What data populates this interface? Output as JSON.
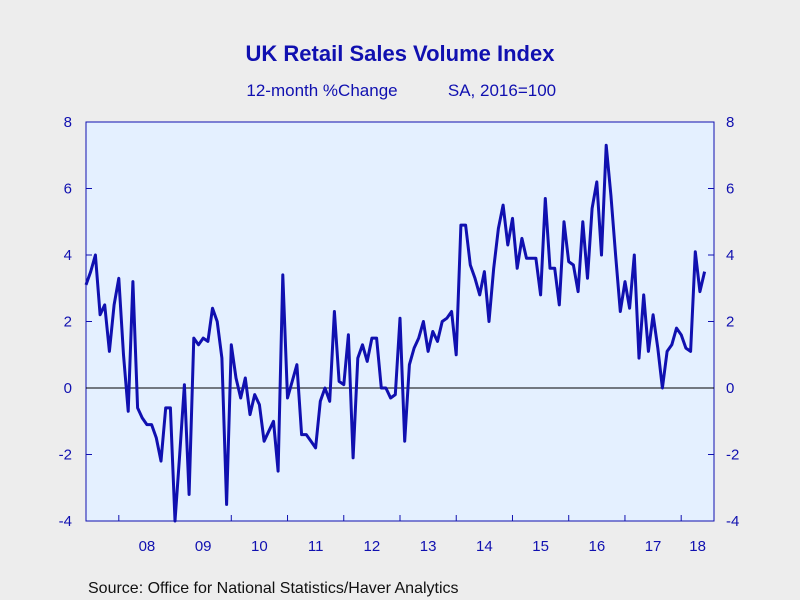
{
  "chart_data": {
    "type": "line",
    "title": "UK Retail Sales Volume Index",
    "subtitle_left": "12-month %Change",
    "subtitle_right": "SA, 2016=100",
    "source": "Source:  Office for National Statistics/Haver Analytics",
    "xlabel": "",
    "ylabel": "",
    "x_start": "2007-06",
    "x_end": "2018-08",
    "ylim": [
      -4,
      8
    ],
    "y_ticks": [
      "8",
      "6",
      "4",
      "2",
      "0",
      "-2",
      "-4"
    ],
    "y_tick_values": [
      8,
      6,
      4,
      2,
      0,
      -2,
      -4
    ],
    "x_tick_labels": [
      "08",
      "09",
      "10",
      "11",
      "12",
      "13",
      "14",
      "15",
      "16",
      "17",
      "18"
    ],
    "x_year_marks": [
      "2008-01",
      "2009-01",
      "2010-01",
      "2011-01",
      "2012-01",
      "2013-01",
      "2014-01",
      "2015-01",
      "2016-01",
      "2017-01",
      "2018-01"
    ],
    "zero_line": true,
    "grid": false,
    "colors": {
      "line": "#1010B0",
      "axis": "#1010B0",
      "plot_bg": "#E4F0FF",
      "page_bg": "#EDEDED",
      "zero_line": "#000000"
    },
    "series": [
      {
        "name": "",
        "monthly_from": "2007-06",
        "values": [
          3.1,
          3.5,
          4.0,
          2.2,
          2.5,
          1.1,
          2.5,
          3.3,
          1.0,
          -0.7,
          3.2,
          -0.6,
          -0.9,
          -1.1,
          -1.1,
          -1.5,
          -2.2,
          -0.6,
          -0.6,
          -4.0,
          -2.0,
          0.1,
          -3.2,
          1.5,
          1.3,
          1.5,
          1.4,
          2.4,
          2.0,
          0.9,
          -3.5,
          1.3,
          0.3,
          -0.3,
          0.3,
          -0.8,
          -0.2,
          -0.5,
          -1.6,
          -1.3,
          -1.0,
          -2.5,
          3.4,
          -0.3,
          0.2,
          0.7,
          -1.4,
          -1.4,
          -1.6,
          -1.8,
          -0.4,
          0.0,
          -0.4,
          2.3,
          0.2,
          0.1,
          1.6,
          -2.1,
          0.9,
          1.3,
          0.8,
          1.5,
          1.5,
          0.0,
          0.0,
          -0.3,
          -0.2,
          2.1,
          -1.6,
          0.7,
          1.2,
          1.5,
          2.0,
          1.1,
          1.7,
          1.4,
          2.0,
          2.1,
          2.3,
          1.0,
          4.9,
          4.9,
          3.7,
          3.3,
          2.8,
          3.5,
          2.0,
          3.6,
          4.8,
          5.5,
          4.3,
          5.1,
          3.6,
          4.5,
          3.9,
          3.9,
          3.9,
          2.8,
          5.7,
          3.6,
          3.6,
          2.5,
          5.0,
          3.8,
          3.7,
          2.9,
          5.0,
          3.3,
          5.4,
          6.2,
          4.0,
          7.3,
          5.8,
          4.0,
          2.3,
          3.2,
          2.4,
          4.0,
          0.9,
          2.8,
          1.1,
          2.2,
          1.2,
          0.0,
          1.1,
          1.3,
          1.8,
          1.6,
          1.2,
          1.1,
          4.1,
          2.9,
          3.5
        ]
      }
    ]
  }
}
